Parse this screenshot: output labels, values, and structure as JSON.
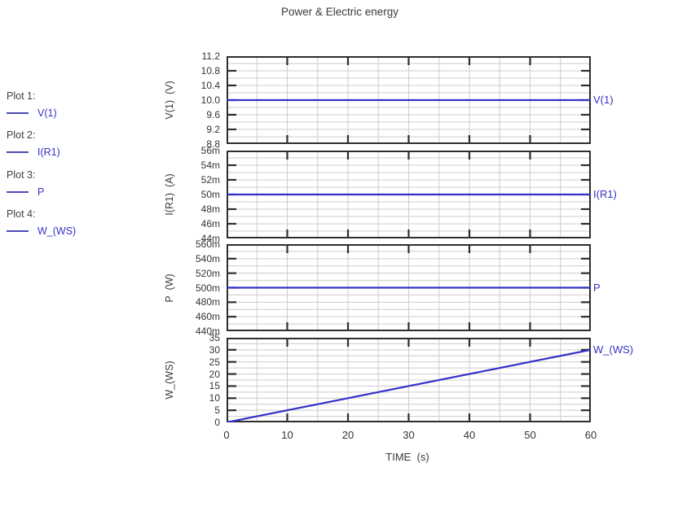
{
  "title": "Power & Electric energy",
  "colors": {
    "trace": "#3232c8",
    "legend_swatch": "#4a4ab4",
    "grid_minor": "#cccccc",
    "axis_frame": "#2e2e2e",
    "text": "#3a3a3a",
    "background": "#ffffff"
  },
  "legend": {
    "items": [
      {
        "label": "Plot 1:",
        "signal": "V(1)"
      },
      {
        "label": "Plot 2:",
        "signal": "I(R1)"
      },
      {
        "label": "Plot 3:",
        "signal": "P"
      },
      {
        "label": "Plot 4:",
        "signal": "W_(WS)"
      }
    ]
  },
  "xaxis": {
    "label": "TIME  (s)",
    "min": 0,
    "max": 60,
    "tick_values": [
      0,
      10,
      20,
      30,
      40,
      50,
      60
    ],
    "tick_labels": [
      "0",
      "10",
      "20",
      "30",
      "40",
      "50",
      "60"
    ],
    "minor_step": 5
  },
  "chart_data": [
    {
      "type": "line",
      "ylabel": "V(1)  (V)",
      "curve_label": "V(1)",
      "ylim": [
        8.8,
        11.2
      ],
      "ytick_values": [
        11.2,
        10.8,
        10.4,
        10.0,
        9.6,
        9.2,
        8.8
      ],
      "ytick_labels": [
        "11.2",
        "10.8",
        "10.4",
        "10.0",
        "9.6",
        "9.2",
        "8.8"
      ],
      "minor_y_step": 0.2,
      "x": [
        0,
        60
      ],
      "values": [
        10.0,
        10.0
      ]
    },
    {
      "type": "line",
      "ylabel": "I(R1)  (A)",
      "curve_label": "I(R1)",
      "ylim": [
        0.044,
        0.056
      ],
      "ytick_values": [
        0.056,
        0.054,
        0.052,
        0.05,
        0.048,
        0.046,
        0.044
      ],
      "ytick_labels": [
        "56m",
        "54m",
        "52m",
        "50m",
        "48m",
        "46m",
        "44m"
      ],
      "minor_y_step": 0.001,
      "x": [
        0,
        60
      ],
      "values": [
        0.05,
        0.05
      ]
    },
    {
      "type": "line",
      "ylabel": "P  (W)",
      "curve_label": "P",
      "ylim": [
        0.44,
        0.56
      ],
      "ytick_values": [
        0.56,
        0.54,
        0.52,
        0.5,
        0.48,
        0.46,
        0.44
      ],
      "ytick_labels": [
        "560m",
        "540m",
        "520m",
        "500m",
        "480m",
        "460m",
        "440m"
      ],
      "minor_y_step": 0.01,
      "x": [
        0,
        60
      ],
      "values": [
        0.5,
        0.5
      ]
    },
    {
      "type": "line",
      "ylabel": "W_(WS)",
      "curve_label": "W_(WS)",
      "ylim": [
        0,
        35
      ],
      "ytick_values": [
        35,
        30,
        25,
        20,
        15,
        10,
        5,
        0
      ],
      "ytick_labels": [
        "35",
        "30",
        "25",
        "20",
        "15",
        "10",
        "5",
        "0"
      ],
      "minor_y_step": 2.5,
      "x": [
        0,
        60
      ],
      "values": [
        0,
        30
      ]
    }
  ]
}
